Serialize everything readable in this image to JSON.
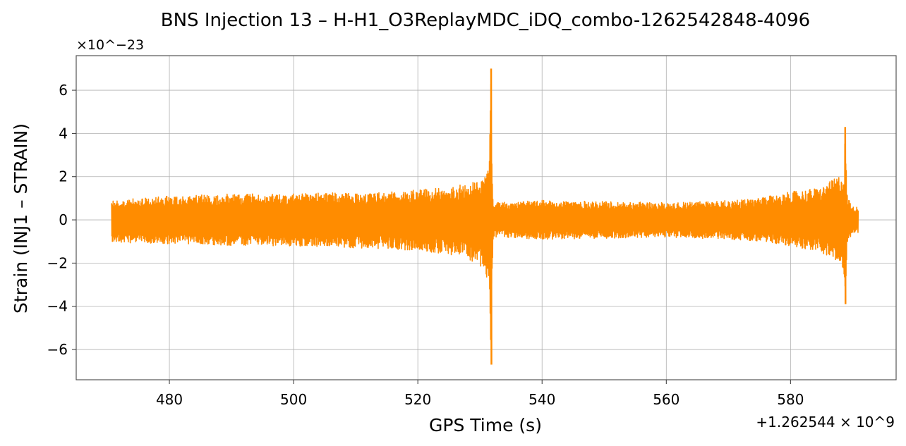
{
  "chart_data": {
    "type": "line",
    "title": "BNS Injection 13 – H-H1_O3ReplayMDC_iDQ_combo-1262542848-4096",
    "xlabel": "GPS Time (s)",
    "ylabel": "Strain (INJ1 – STRAIN)",
    "x_offset_label": "+1.262544 × 10^9",
    "y_scale_label": "×10^−23",
    "x_offset": 1262544000,
    "y_scale": 1e-23,
    "xlim": [
      465,
      597
    ],
    "ylim": [
      -7.4,
      7.6
    ],
    "x_ticks": [
      480,
      500,
      520,
      540,
      560,
      580
    ],
    "x_tick_labels": [
      "480",
      "500",
      "520",
      "540",
      "560",
      "580"
    ],
    "y_ticks": [
      -6,
      -4,
      -2,
      0,
      2,
      4,
      6
    ],
    "y_tick_labels": [
      "−6",
      "−4",
      "−2",
      "0",
      "2",
      "4",
      "6"
    ],
    "grid": true,
    "line_color": "#ff8c00",
    "series": [
      {
        "envelope": {
          "x": [
            470.7,
            475,
            480,
            490,
            500,
            505,
            510,
            515,
            520,
            525,
            528,
            530.5,
            531.3,
            531.6,
            531.8,
            532.1,
            533,
            540,
            550,
            560,
            565,
            570,
            575,
            580,
            585,
            587.5,
            588.6,
            588.8,
            589.1,
            590,
            590.9
          ],
          "upper": [
            0.9,
            1.0,
            1.1,
            1.2,
            1.2,
            1.25,
            1.25,
            1.3,
            1.4,
            1.5,
            1.7,
            1.8,
            2.4,
            4.0,
            7.0,
            0.9,
            0.8,
            0.9,
            0.85,
            0.8,
            0.85,
            0.9,
            1.0,
            1.3,
            1.5,
            2.0,
            2.2,
            4.3,
            1.2,
            0.6,
            0.6
          ],
          "lower": [
            -1.0,
            -1.1,
            -1.1,
            -1.2,
            -1.2,
            -1.25,
            -1.3,
            -1.35,
            -1.45,
            -1.6,
            -1.8,
            -2.2,
            -3.0,
            -4.5,
            -6.7,
            -0.9,
            -0.8,
            -0.9,
            -0.85,
            -0.8,
            -0.85,
            -0.9,
            -1.0,
            -1.2,
            -1.5,
            -2.0,
            -2.4,
            -3.9,
            -1.1,
            -0.6,
            -0.6
          ]
        }
      }
    ]
  }
}
